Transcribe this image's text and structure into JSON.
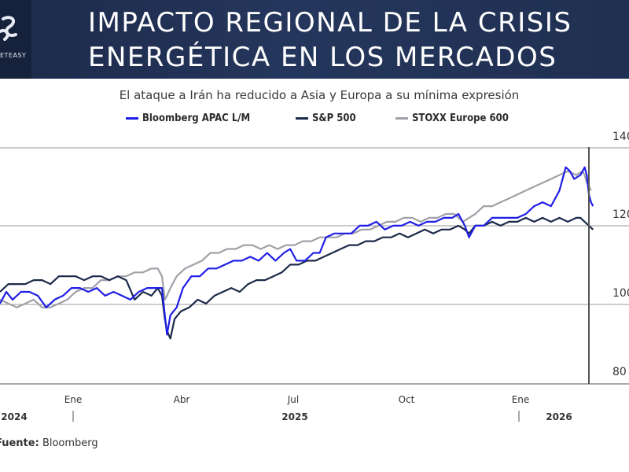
{
  "header": {
    "title_line1": "IMPACTO REGIONAL DE LA CRISIS",
    "title_line2": "ENERGÉTICA EN LOS MERCADOS",
    "logo_text": "ETEASY"
  },
  "source": {
    "label": "Fuente:",
    "name": "Bloomberg"
  },
  "chart_data": {
    "type": "line",
    "title": "El ataque a Irán ha reducido a Asia y Europa a su mínima expresión",
    "ylim": [
      80,
      140
    ],
    "y_ticks": [
      80,
      100,
      120,
      140
    ],
    "y_tick_labels": [
      "80",
      "100",
      "120",
      "140"
    ],
    "grid": true,
    "legend_position": "top",
    "x_tick_labels": [
      {
        "label": "Ene",
        "t": 1.0
      },
      {
        "label": "Abr",
        "t": 4.0
      },
      {
        "label": "Jul",
        "t": 7.0
      },
      {
        "label": "Oct",
        "t": 10.0
      },
      {
        "label": "Ene",
        "t": 13.0
      }
    ],
    "year_labels": [
      {
        "label": "2024",
        "t": 0.45
      },
      {
        "label": "2025",
        "t": 7.0
      },
      {
        "label": "2026",
        "t": 13.5
      }
    ],
    "year_separators": [
      1.0,
      13.0
    ],
    "event_marker_t": 13.9,
    "x_range": [
      0.0,
      14.15
    ],
    "series": [
      {
        "name": "Bloomberg APAC L/M",
        "color": "#1f1ee6",
        "points": [
          [
            0.0,
            97
          ],
          [
            0.15,
            100
          ],
          [
            0.3,
            98
          ],
          [
            0.5,
            100
          ],
          [
            0.7,
            100
          ],
          [
            0.9,
            99
          ],
          [
            1.1,
            96
          ],
          [
            1.3,
            98
          ],
          [
            1.5,
            99
          ],
          [
            1.7,
            101
          ],
          [
            1.9,
            101
          ],
          [
            2.1,
            100
          ],
          [
            2.3,
            101
          ],
          [
            2.5,
            99
          ],
          [
            2.7,
            100
          ],
          [
            2.9,
            99
          ],
          [
            3.1,
            98
          ],
          [
            3.3,
            100
          ],
          [
            3.5,
            101
          ],
          [
            3.7,
            101
          ],
          [
            3.85,
            101
          ],
          [
            3.93,
            93
          ],
          [
            3.97,
            89
          ],
          [
            4.05,
            94
          ],
          [
            4.2,
            96
          ],
          [
            4.35,
            101
          ],
          [
            4.55,
            104
          ],
          [
            4.75,
            104
          ],
          [
            4.95,
            106
          ],
          [
            5.15,
            106
          ],
          [
            5.35,
            107
          ],
          [
            5.55,
            108
          ],
          [
            5.75,
            108
          ],
          [
            5.95,
            109
          ],
          [
            6.15,
            108
          ],
          [
            6.35,
            110
          ],
          [
            6.55,
            108
          ],
          [
            6.75,
            110
          ],
          [
            6.9,
            111
          ],
          [
            7.05,
            108
          ],
          [
            7.25,
            108
          ],
          [
            7.45,
            110
          ],
          [
            7.6,
            110
          ],
          [
            7.75,
            114
          ],
          [
            7.95,
            115
          ],
          [
            8.15,
            115
          ],
          [
            8.35,
            115
          ],
          [
            8.55,
            117
          ],
          [
            8.75,
            117
          ],
          [
            8.95,
            118
          ],
          [
            9.15,
            116
          ],
          [
            9.35,
            117
          ],
          [
            9.55,
            117
          ],
          [
            9.75,
            118
          ],
          [
            9.95,
            117
          ],
          [
            10.15,
            118
          ],
          [
            10.35,
            118
          ],
          [
            10.55,
            119
          ],
          [
            10.75,
            119
          ],
          [
            10.9,
            120
          ],
          [
            11.05,
            117
          ],
          [
            11.15,
            114
          ],
          [
            11.3,
            117
          ],
          [
            11.5,
            117
          ],
          [
            11.7,
            119
          ],
          [
            11.9,
            119
          ],
          [
            12.1,
            119
          ],
          [
            12.3,
            119
          ],
          [
            12.5,
            120
          ],
          [
            12.7,
            122
          ],
          [
            12.9,
            123
          ],
          [
            13.1,
            122
          ],
          [
            13.3,
            126
          ],
          [
            13.45,
            132
          ],
          [
            13.55,
            131
          ],
          [
            13.65,
            129
          ],
          [
            13.8,
            130
          ],
          [
            13.9,
            132
          ],
          [
            13.95,
            130
          ],
          [
            14.0,
            125
          ],
          [
            14.05,
            123
          ],
          [
            14.1,
            122
          ]
        ]
      },
      {
        "name": "S&P 500",
        "color": "#1c2a4a",
        "points": [
          [
            0.0,
            100
          ],
          [
            0.2,
            102
          ],
          [
            0.4,
            102
          ],
          [
            0.6,
            102
          ],
          [
            0.8,
            103
          ],
          [
            1.0,
            103
          ],
          [
            1.2,
            102
          ],
          [
            1.4,
            104
          ],
          [
            1.6,
            104
          ],
          [
            1.8,
            104
          ],
          [
            2.0,
            103
          ],
          [
            2.2,
            104
          ],
          [
            2.4,
            104
          ],
          [
            2.6,
            103
          ],
          [
            2.8,
            104
          ],
          [
            3.0,
            103
          ],
          [
            3.2,
            98
          ],
          [
            3.4,
            100
          ],
          [
            3.6,
            99
          ],
          [
            3.75,
            101
          ],
          [
            3.85,
            99
          ],
          [
            3.92,
            93
          ],
          [
            3.97,
            90
          ],
          [
            4.05,
            88
          ],
          [
            4.15,
            93
          ],
          [
            4.3,
            95
          ],
          [
            4.5,
            96
          ],
          [
            4.7,
            98
          ],
          [
            4.9,
            97
          ],
          [
            5.1,
            99
          ],
          [
            5.3,
            100
          ],
          [
            5.5,
            101
          ],
          [
            5.7,
            100
          ],
          [
            5.9,
            102
          ],
          [
            6.1,
            103
          ],
          [
            6.3,
            103
          ],
          [
            6.5,
            104
          ],
          [
            6.7,
            105
          ],
          [
            6.9,
            107
          ],
          [
            7.1,
            107
          ],
          [
            7.3,
            108
          ],
          [
            7.5,
            108
          ],
          [
            7.7,
            109
          ],
          [
            7.9,
            110
          ],
          [
            8.1,
            111
          ],
          [
            8.3,
            112
          ],
          [
            8.5,
            112
          ],
          [
            8.7,
            113
          ],
          [
            8.9,
            113
          ],
          [
            9.1,
            114
          ],
          [
            9.3,
            114
          ],
          [
            9.5,
            115
          ],
          [
            9.7,
            114
          ],
          [
            9.9,
            115
          ],
          [
            10.1,
            116
          ],
          [
            10.3,
            115
          ],
          [
            10.5,
            116
          ],
          [
            10.7,
            116
          ],
          [
            10.9,
            117
          ],
          [
            11.05,
            116
          ],
          [
            11.15,
            115
          ],
          [
            11.3,
            117
          ],
          [
            11.5,
            117
          ],
          [
            11.7,
            118
          ],
          [
            11.9,
            117
          ],
          [
            12.1,
            118
          ],
          [
            12.3,
            118
          ],
          [
            12.5,
            119
          ],
          [
            12.7,
            118
          ],
          [
            12.9,
            119
          ],
          [
            13.1,
            118
          ],
          [
            13.3,
            119
          ],
          [
            13.5,
            118
          ],
          [
            13.7,
            119
          ],
          [
            13.8,
            119
          ],
          [
            13.9,
            118
          ],
          [
            14.0,
            117
          ],
          [
            14.1,
            116
          ]
        ]
      },
      {
        "name": "STOXX Europe 600",
        "color": "#a0a0a8",
        "points": [
          [
            0.0,
            98
          ],
          [
            0.2,
            97
          ],
          [
            0.4,
            96
          ],
          [
            0.6,
            97
          ],
          [
            0.8,
            98
          ],
          [
            1.0,
            96
          ],
          [
            1.2,
            96
          ],
          [
            1.4,
            97
          ],
          [
            1.6,
            98
          ],
          [
            1.8,
            100
          ],
          [
            2.0,
            101
          ],
          [
            2.2,
            101
          ],
          [
            2.4,
            103
          ],
          [
            2.6,
            103
          ],
          [
            2.8,
            104
          ],
          [
            3.0,
            104
          ],
          [
            3.2,
            105
          ],
          [
            3.4,
            105
          ],
          [
            3.6,
            106
          ],
          [
            3.75,
            106
          ],
          [
            3.85,
            104
          ],
          [
            3.92,
            98
          ],
          [
            3.97,
            99
          ],
          [
            4.05,
            101
          ],
          [
            4.2,
            104
          ],
          [
            4.4,
            106
          ],
          [
            4.6,
            107
          ],
          [
            4.8,
            108
          ],
          [
            5.0,
            110
          ],
          [
            5.2,
            110
          ],
          [
            5.4,
            111
          ],
          [
            5.6,
            111
          ],
          [
            5.8,
            112
          ],
          [
            6.0,
            112
          ],
          [
            6.2,
            111
          ],
          [
            6.4,
            112
          ],
          [
            6.6,
            111
          ],
          [
            6.8,
            112
          ],
          [
            7.0,
            112
          ],
          [
            7.2,
            113
          ],
          [
            7.4,
            113
          ],
          [
            7.6,
            114
          ],
          [
            7.8,
            114
          ],
          [
            8.0,
            114
          ],
          [
            8.2,
            115
          ],
          [
            8.4,
            115
          ],
          [
            8.6,
            116
          ],
          [
            8.8,
            116
          ],
          [
            9.0,
            117
          ],
          [
            9.2,
            118
          ],
          [
            9.4,
            118
          ],
          [
            9.6,
            119
          ],
          [
            9.8,
            119
          ],
          [
            10.0,
            118
          ],
          [
            10.2,
            119
          ],
          [
            10.4,
            119
          ],
          [
            10.6,
            120
          ],
          [
            10.8,
            120
          ],
          [
            11.0,
            118
          ],
          [
            11.15,
            119
          ],
          [
            11.3,
            120
          ],
          [
            11.5,
            122
          ],
          [
            11.7,
            122
          ],
          [
            11.9,
            123
          ],
          [
            12.1,
            124
          ],
          [
            12.3,
            125
          ],
          [
            12.5,
            126
          ],
          [
            12.7,
            127
          ],
          [
            12.9,
            128
          ],
          [
            13.1,
            129
          ],
          [
            13.3,
            130
          ],
          [
            13.5,
            131
          ],
          [
            13.7,
            130
          ],
          [
            13.85,
            131
          ],
          [
            13.9,
            130
          ],
          [
            13.95,
            128
          ],
          [
            14.0,
            127
          ],
          [
            14.05,
            126
          ]
        ]
      }
    ]
  }
}
